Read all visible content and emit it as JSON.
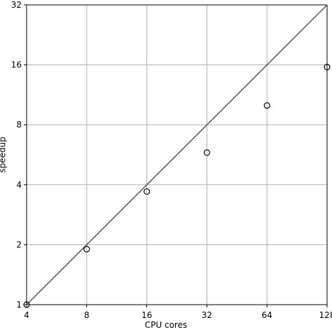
{
  "chart_data": {
    "type": "scatter",
    "xlabel": "CPU cores",
    "ylabel": "speedup",
    "xlog": true,
    "ylog": true,
    "grid": true,
    "xlim": [
      4,
      128
    ],
    "ylim": [
      1,
      32
    ],
    "xticks": [
      4,
      8,
      16,
      32,
      64,
      128
    ],
    "yticks": [
      1,
      2,
      4,
      8,
      16,
      32
    ],
    "series": [
      {
        "type": "line",
        "color": "#555555",
        "x": [
          4,
          128
        ],
        "values": [
          1,
          32
        ]
      },
      {
        "type": "scatter",
        "color": "#000000",
        "x": [
          4,
          8,
          16,
          32,
          64,
          128
        ],
        "values": [
          1,
          1.9,
          3.7,
          5.8,
          10,
          15.6
        ]
      }
    ]
  }
}
